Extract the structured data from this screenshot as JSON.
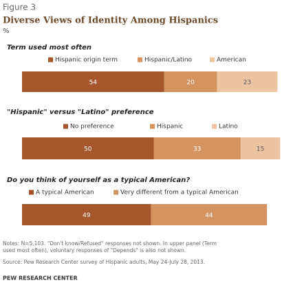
{
  "figure_label": "Figure 3",
  "title": "Diverse Views of Identity Among Hispanics",
  "subtitle": "%",
  "notes": [
    "Notes: N=5,103. \"Don't know/Refused\" responses not shown. In upper panel (Term",
    "used most often), voluntary responses of \"Depends\" is also not shown."
  ],
  "source": "Source: Pew Research Center survey of Hispanic adults, May 24-July 28, 2013.",
  "footer": "PEW RESEARCH CENTER",
  "chart_data": [
    {
      "type": "bar",
      "title": "Term used most often",
      "xlim": [
        0,
        100
      ],
      "series": [
        {
          "name": "Hispanic origin term",
          "color": "#a5562a",
          "values": [
            54
          ]
        },
        {
          "name": "Hispanic/Latino",
          "color": "#d4935f",
          "values": [
            20
          ]
        },
        {
          "name": "American",
          "color": "#ecc4a0",
          "values": [
            23
          ]
        }
      ]
    },
    {
      "type": "bar",
      "title": "\"Hispanic\" versus \"Latino\" preference",
      "xlim": [
        0,
        100
      ],
      "series": [
        {
          "name": "No preference",
          "color": "#a5562a",
          "values": [
            50
          ]
        },
        {
          "name": "Hispanic",
          "color": "#d4935f",
          "values": [
            33
          ]
        },
        {
          "name": "Latino",
          "color": "#ecc4a0",
          "values": [
            15
          ]
        }
      ]
    },
    {
      "type": "bar",
      "title": "Do you think of yourself as a typical American?",
      "xlim": [
        0,
        100
      ],
      "series": [
        {
          "name": "A typical American",
          "color": "#a5562a",
          "values": [
            49
          ]
        },
        {
          "name": "Very different from a typical American",
          "color": "#d4935f",
          "values": [
            44
          ]
        }
      ]
    }
  ]
}
